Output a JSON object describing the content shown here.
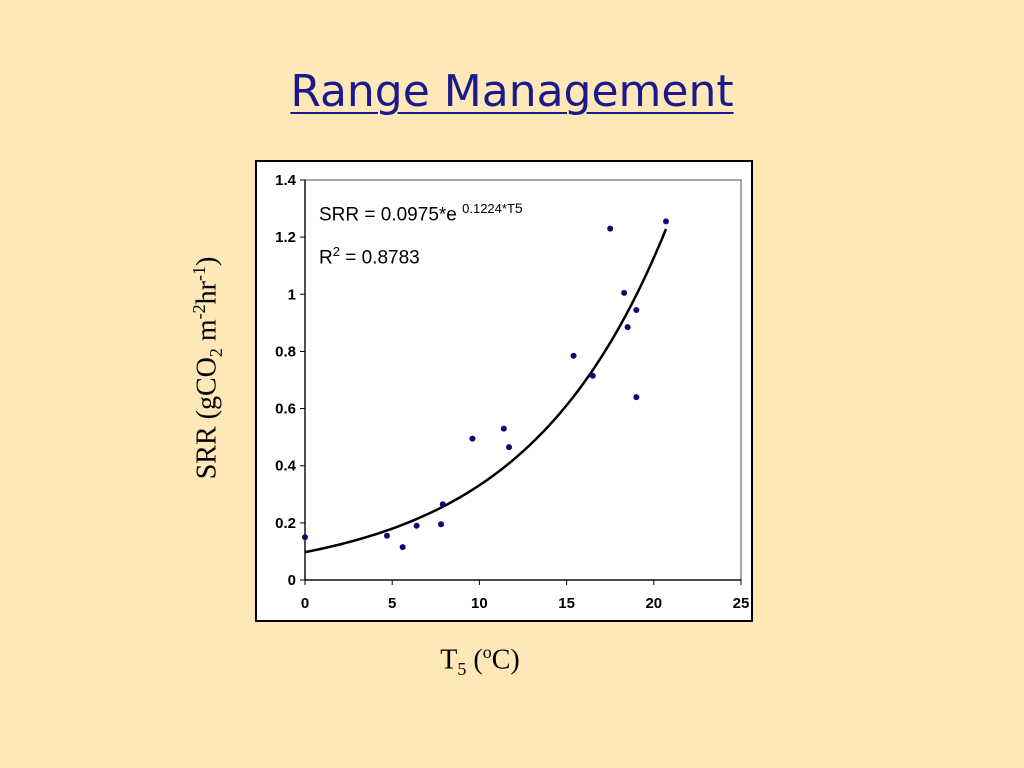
{
  "slide": {
    "title": "Range Management"
  },
  "chart_data": {
    "type": "scatter",
    "xlim": [
      0,
      25
    ],
    "ylim": [
      0,
      1.4
    ],
    "x_ticks": [
      0,
      5,
      10,
      15,
      20,
      25
    ],
    "y_ticks": [
      0,
      0.2,
      0.4,
      0.6,
      0.8,
      1,
      1.2,
      1.4
    ],
    "x_tick_labels": [
      "0",
      "5",
      "10",
      "15",
      "20",
      "25"
    ],
    "y_tick_labels": [
      "0",
      "0.2",
      "0.4",
      "0.6",
      "0.8",
      "1",
      "1.2",
      "1.4"
    ],
    "xlabel": {
      "main": "T",
      "sub": "5",
      "open": " (",
      "sup": "o",
      "unit": "C)"
    },
    "ylabel": {
      "p1": "SRR (gCO",
      "sub": "2",
      "p2": " m",
      "sup1": "-2",
      "p3": "hr",
      "sup2": "-1",
      "p4": ")"
    },
    "grid": false,
    "legend": "none",
    "points": [
      {
        "x": 0.0,
        "y": 0.15
      },
      {
        "x": 4.7,
        "y": 0.155
      },
      {
        "x": 5.6,
        "y": 0.115
      },
      {
        "x": 6.4,
        "y": 0.19
      },
      {
        "x": 7.8,
        "y": 0.195
      },
      {
        "x": 7.9,
        "y": 0.265
      },
      {
        "x": 9.6,
        "y": 0.495
      },
      {
        "x": 11.4,
        "y": 0.53
      },
      {
        "x": 11.7,
        "y": 0.465
      },
      {
        "x": 15.4,
        "y": 0.785
      },
      {
        "x": 16.5,
        "y": 0.715
      },
      {
        "x": 17.5,
        "y": 1.23
      },
      {
        "x": 18.3,
        "y": 1.005
      },
      {
        "x": 18.5,
        "y": 0.885
      },
      {
        "x": 19.0,
        "y": 0.945
      },
      {
        "x": 19.0,
        "y": 0.64
      },
      {
        "x": 20.7,
        "y": 1.255
      }
    ],
    "fit": {
      "a": 0.0975,
      "b": 0.1224,
      "x_range": [
        0,
        20.7
      ],
      "equation": {
        "lhs": "SRR = 0.0975*e ",
        "exp": "0.1224*T",
        "exp_sub": "5"
      },
      "r2": {
        "r": "R",
        "sup": "2",
        "rest": " = 0.8783"
      }
    },
    "colors": {
      "points": "#0a0a6e",
      "fit_line": "#000000",
      "plot_border": "#888888",
      "title": "#1a1a8c",
      "background": "#FFE8B8"
    }
  }
}
